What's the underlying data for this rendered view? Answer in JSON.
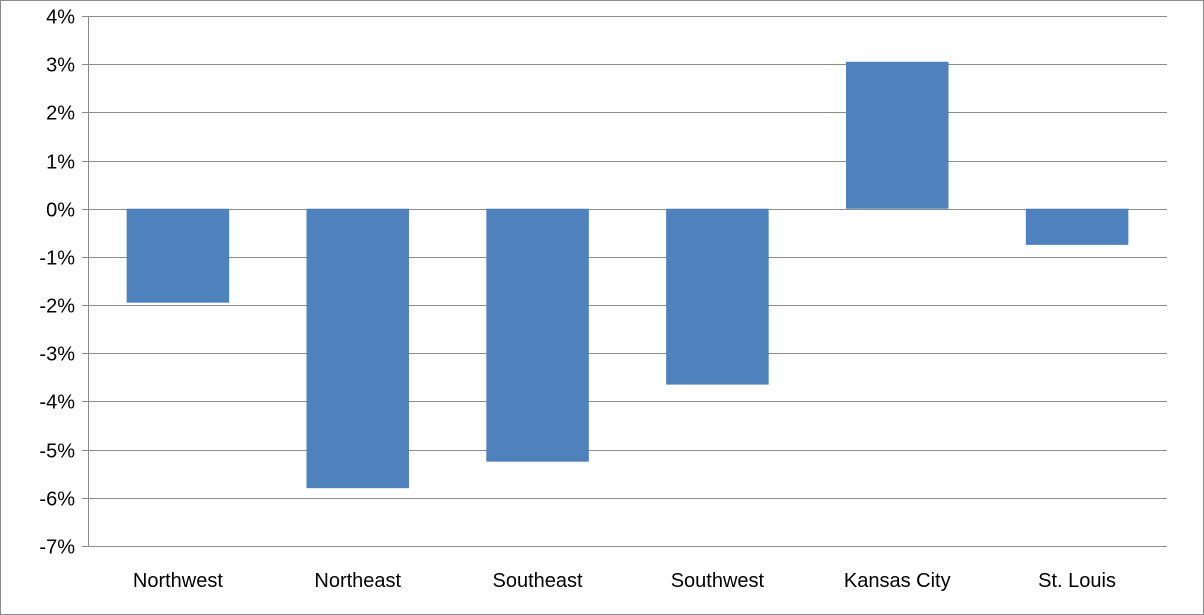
{
  "chart_data": {
    "type": "bar",
    "title": "",
    "xlabel": "",
    "ylabel": "",
    "categories": [
      "Northwest",
      "Northeast",
      "Southeast",
      "Southwest",
      "Kansas City",
      "St. Louis"
    ],
    "values": [
      -1.95,
      -5.8,
      -5.25,
      -3.65,
      3.05,
      -0.75
    ],
    "value_unit": "%",
    "ylim": [
      -7,
      4
    ],
    "yticks": [
      4,
      3,
      2,
      1,
      0,
      -1,
      -2,
      -3,
      -4,
      -5,
      -6,
      -7
    ],
    "ytick_labels": [
      "4%",
      "3%",
      "2%",
      "1%",
      "0%",
      "-1%",
      "-2%",
      "-3%",
      "-4%",
      "-5%",
      "-6%",
      "-7%"
    ],
    "grid": true,
    "legend": "none",
    "colors": {
      "bar": "#4f81bd",
      "grid": "#8c8c8c",
      "axis": "#8c8c8c"
    }
  }
}
